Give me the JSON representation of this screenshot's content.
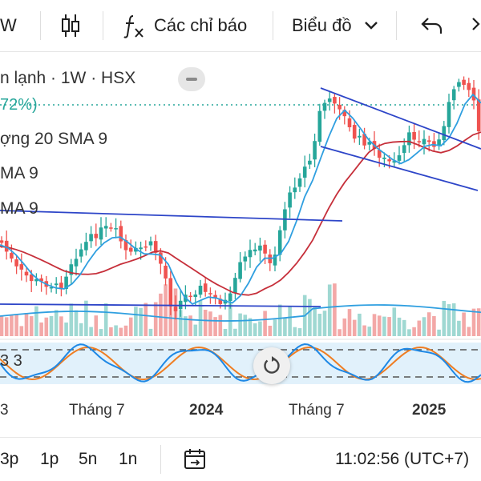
{
  "toolbar": {
    "interval_fragment": "W",
    "indicators_label": "Các chỉ báo",
    "chart_type_label": "Biểu đồ"
  },
  "legend": {
    "symbol_line": "n lạnh · 1W · HSX",
    "change_line": "72%)",
    "volume_line": "ợng 20 SMA 9",
    "sma_line_1": "MA 9",
    "sma_line_2": "MA 9",
    "stoch_line": "3 3"
  },
  "colors": {
    "up": "#26a69a",
    "down": "#ef5350",
    "sma_fast": "#2f9fe0",
    "sma_slow": "#c62f3a",
    "trendline": "#2d45c8",
    "stoch_k": "#1e88e5",
    "stoch_d": "#ef7d22",
    "stoch_bg": "#e1f1fb"
  },
  "x_axis": [
    {
      "label": "3",
      "bold": false
    },
    {
      "label": "Tháng 7",
      "bold": false
    },
    {
      "label": "2024",
      "bold": true
    },
    {
      "label": "Tháng 7",
      "bold": false
    },
    {
      "label": "2025",
      "bold": true
    }
  ],
  "bottom": {
    "ranges": [
      "3p",
      "1p",
      "5n",
      "1n"
    ],
    "time": "11:02:56 (UTC+7)"
  }
}
